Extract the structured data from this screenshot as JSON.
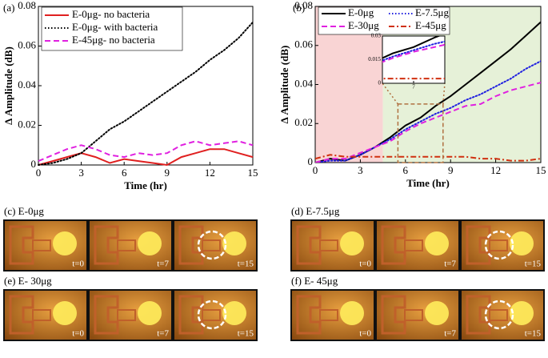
{
  "chart_data": [
    {
      "type": "line",
      "panel": "(a)",
      "xlabel": "Time (hr)",
      "ylabel": "Δ Amplitude (dB)",
      "x": [
        0,
        1,
        2,
        3,
        4,
        5,
        6,
        7,
        8,
        9,
        10,
        11,
        12,
        13,
        14,
        15
      ],
      "xlim": [
        0,
        15
      ],
      "ylim": [
        0,
        0.08
      ],
      "xticks": [
        0,
        3,
        6,
        9,
        12,
        15
      ],
      "yticks": [
        0,
        0.02,
        0.04,
        0.06,
        0.08
      ],
      "legend": "upper left",
      "series": [
        {
          "name": "E-0μg- no bacteria",
          "color": "#e02020",
          "style": "solid",
          "values": [
            0,
            0.002,
            0.004,
            0.006,
            0.004,
            0.001,
            0.003,
            0.002,
            0.001,
            0,
            0.004,
            0.006,
            0.008,
            0.008,
            0.006,
            0.004
          ]
        },
        {
          "name": "E-0μg- with bacteria",
          "color": "#000000",
          "style": "dotted",
          "values": [
            0,
            0.001,
            0.003,
            0.006,
            0.012,
            0.018,
            0.022,
            0.027,
            0.032,
            0.037,
            0.042,
            0.047,
            0.053,
            0.058,
            0.064,
            0.072
          ]
        },
        {
          "name": "E-45μg- no bacteria",
          "color": "#e020e0",
          "style": "dashed",
          "values": [
            0.002,
            0.005,
            0.008,
            0.01,
            0.008,
            0.005,
            0.004,
            0.006,
            0.005,
            0.006,
            0.01,
            0.012,
            0.01,
            0.011,
            0.012,
            0.01
          ]
        }
      ]
    },
    {
      "type": "line",
      "panel": "(b)",
      "xlabel": "Time (hr)",
      "ylabel": "Δ Amplitude (dB)",
      "x": [
        0,
        1,
        2,
        3,
        4,
        5,
        6,
        7,
        8,
        9,
        10,
        11,
        12,
        13,
        14,
        15
      ],
      "xlim": [
        0,
        15
      ],
      "ylim": [
        0,
        0.08
      ],
      "xticks": [
        0,
        3,
        6,
        9,
        12,
        15
      ],
      "yticks": [
        0,
        0.02,
        0.04,
        0.06,
        0.08
      ],
      "legend": "upper left",
      "regions": [
        {
          "xlim": [
            0,
            4.5
          ],
          "color": "#f9d4d4"
        },
        {
          "xlim": [
            4.5,
            15
          ],
          "color": "#e6f1d8"
        }
      ],
      "series": [
        {
          "name": "E-0μg",
          "color": "#000000",
          "style": "solid",
          "values": [
            0,
            0.002,
            0.001,
            0.004,
            0.008,
            0.013,
            0.019,
            0.023,
            0.029,
            0.034,
            0.04,
            0.046,
            0.052,
            0.058,
            0.065,
            0.072
          ]
        },
        {
          "name": "E-7.5μg",
          "color": "#2020e0",
          "style": "dotted",
          "values": [
            0,
            0.001,
            0.001,
            0.004,
            0.008,
            0.012,
            0.017,
            0.021,
            0.025,
            0.028,
            0.032,
            0.035,
            0.039,
            0.043,
            0.048,
            0.052
          ]
        },
        {
          "name": "E-30μg",
          "color": "#e020e0",
          "style": "dashed",
          "values": [
            0,
            0.002,
            0.002,
            0.005,
            0.008,
            0.011,
            0.016,
            0.02,
            0.023,
            0.026,
            0.029,
            0.03,
            0.034,
            0.037,
            0.039,
            0.041
          ]
        },
        {
          "name": "E-45μg",
          "color": "#d03010",
          "style": "dashdot",
          "values": [
            0.002,
            0.004,
            0.003,
            0.003,
            0.003,
            0.003,
            0.003,
            0.003,
            0.003,
            0.003,
            0.003,
            0.002,
            0.002,
            0.001,
            0.001,
            0.002
          ]
        }
      ],
      "inset": {
        "xlim": [
          5.5,
          8.5
        ],
        "ylim": [
          0,
          0.03
        ],
        "xticks": [
          7
        ],
        "yticks": [
          0,
          0.015,
          0.03
        ]
      }
    }
  ],
  "photo_panels": [
    {
      "label": "(c) E-0μg",
      "frames": [
        "t=0",
        "t=7",
        "t=15"
      ]
    },
    {
      "label": "(d) E-7.5μg",
      "frames": [
        "t=0",
        "t=7",
        "t=15"
      ]
    },
    {
      "label": "(e) E- 30μg",
      "frames": [
        "t=0",
        "t=7",
        "t=15"
      ]
    },
    {
      "label": "(f) E- 45μg",
      "frames": [
        "t=0",
        "t=7",
        "t=15"
      ]
    }
  ]
}
